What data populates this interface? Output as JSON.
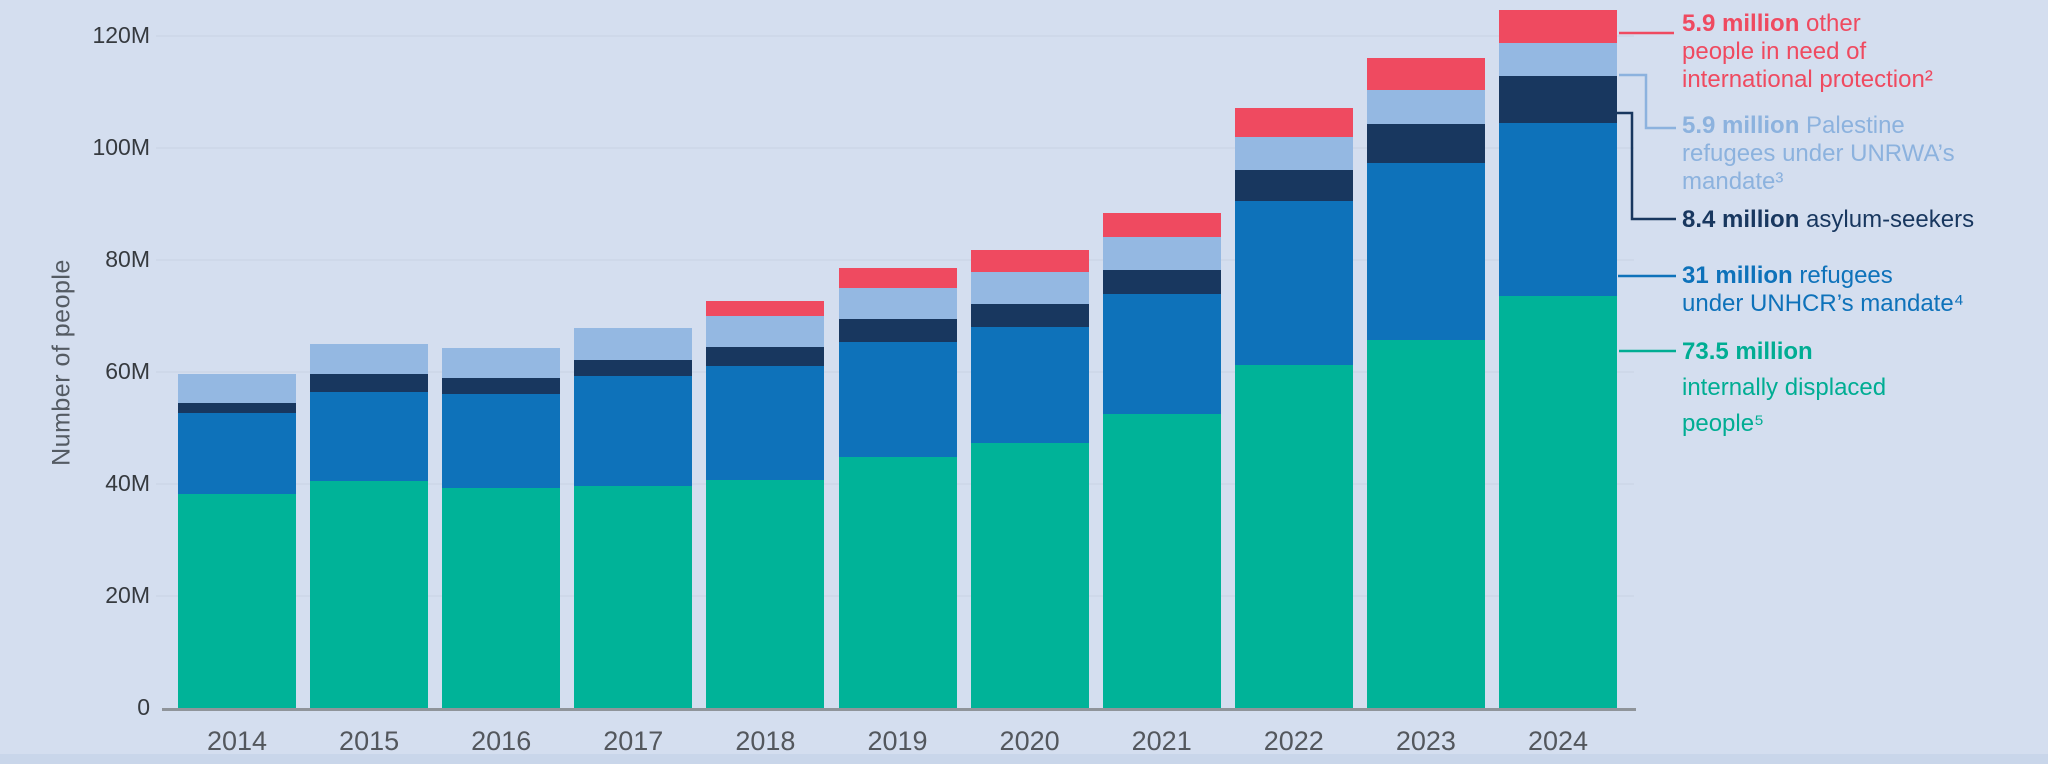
{
  "chart_data": {
    "type": "bar",
    "subtype": "stacked",
    "title": "",
    "ylabel": "Number of people",
    "xlabel": "",
    "grid": "horizontal",
    "legend_position": "right",
    "background_color": "#d4deef",
    "categories": [
      "2014",
      "2015",
      "2016",
      "2017",
      "2018",
      "2019",
      "2020",
      "2021",
      "2022",
      "2023",
      "2024"
    ],
    "yticks": [
      {
        "label": "0",
        "value": 0
      },
      {
        "label": "20M",
        "value": 20
      },
      {
        "label": "40M",
        "value": 40
      },
      {
        "label": "60M",
        "value": 60
      },
      {
        "label": "80M",
        "value": 80
      },
      {
        "label": "100M",
        "value": 100
      },
      {
        "label": "120M",
        "value": 120
      }
    ],
    "ylim": [
      0,
      130
    ],
    "unit": "millions of people",
    "series": [
      {
        "name": "Internally displaced people",
        "color": "#00B398",
        "values": [
          38.2,
          40.5,
          39.2,
          39.6,
          40.7,
          44.9,
          47.3,
          52.5,
          61.2,
          65.8,
          73.5
        ]
      },
      {
        "name": "Refugees under UNHCR's mandate",
        "color": "#0E72BA",
        "values": [
          14.4,
          16.0,
          16.9,
          19.6,
          20.3,
          20.4,
          20.8,
          21.4,
          29.4,
          31.6,
          31.0
        ]
      },
      {
        "name": "Asylum-seekers",
        "color": "#18375F",
        "values": [
          1.8,
          3.2,
          2.9,
          3.0,
          3.5,
          4.1,
          4.0,
          4.4,
          5.5,
          6.9,
          8.4
        ]
      },
      {
        "name": "Palestine refugees under UNRWA's mandate",
        "color": "#94B8E2",
        "values": [
          5.2,
          5.3,
          5.3,
          5.6,
          5.5,
          5.6,
          5.8,
          5.8,
          5.8,
          6.0,
          5.9
        ]
      },
      {
        "name": "Other people in need of international protection",
        "color": "#EF4A60",
        "values": [
          0,
          0,
          0,
          0,
          2.6,
          3.6,
          3.8,
          4.3,
          5.2,
          5.8,
          5.9
        ]
      }
    ]
  },
  "axis": {
    "y_title": "Number of people"
  },
  "legend": {
    "entries": [
      {
        "id": "other",
        "color": "#EF4A60",
        "bold": "5.9 million",
        "rest1": " other",
        "line2": "people in need of",
        "line3": "international protection²"
      },
      {
        "id": "unrwa",
        "color": "#8CB2DE",
        "bold": "5.9 million",
        "rest1": " Palestine",
        "line2": "refugees under UNRWA’s",
        "line3": "mandate³"
      },
      {
        "id": "asylum",
        "color": "#18375F",
        "bold": "8.4 million",
        "rest1": " asylum-seekers",
        "line2": "",
        "line3": ""
      },
      {
        "id": "unhcr",
        "color": "#0E72BA",
        "bold": "31 million",
        "rest1": " refugees",
        "line2": "under UNHCR’s mandate⁴",
        "line3": ""
      },
      {
        "id": "idp",
        "color": "#00AD93",
        "bold": "73.5 million",
        "rest1": "",
        "line2": "internally displaced",
        "line3": "people⁵"
      }
    ]
  }
}
